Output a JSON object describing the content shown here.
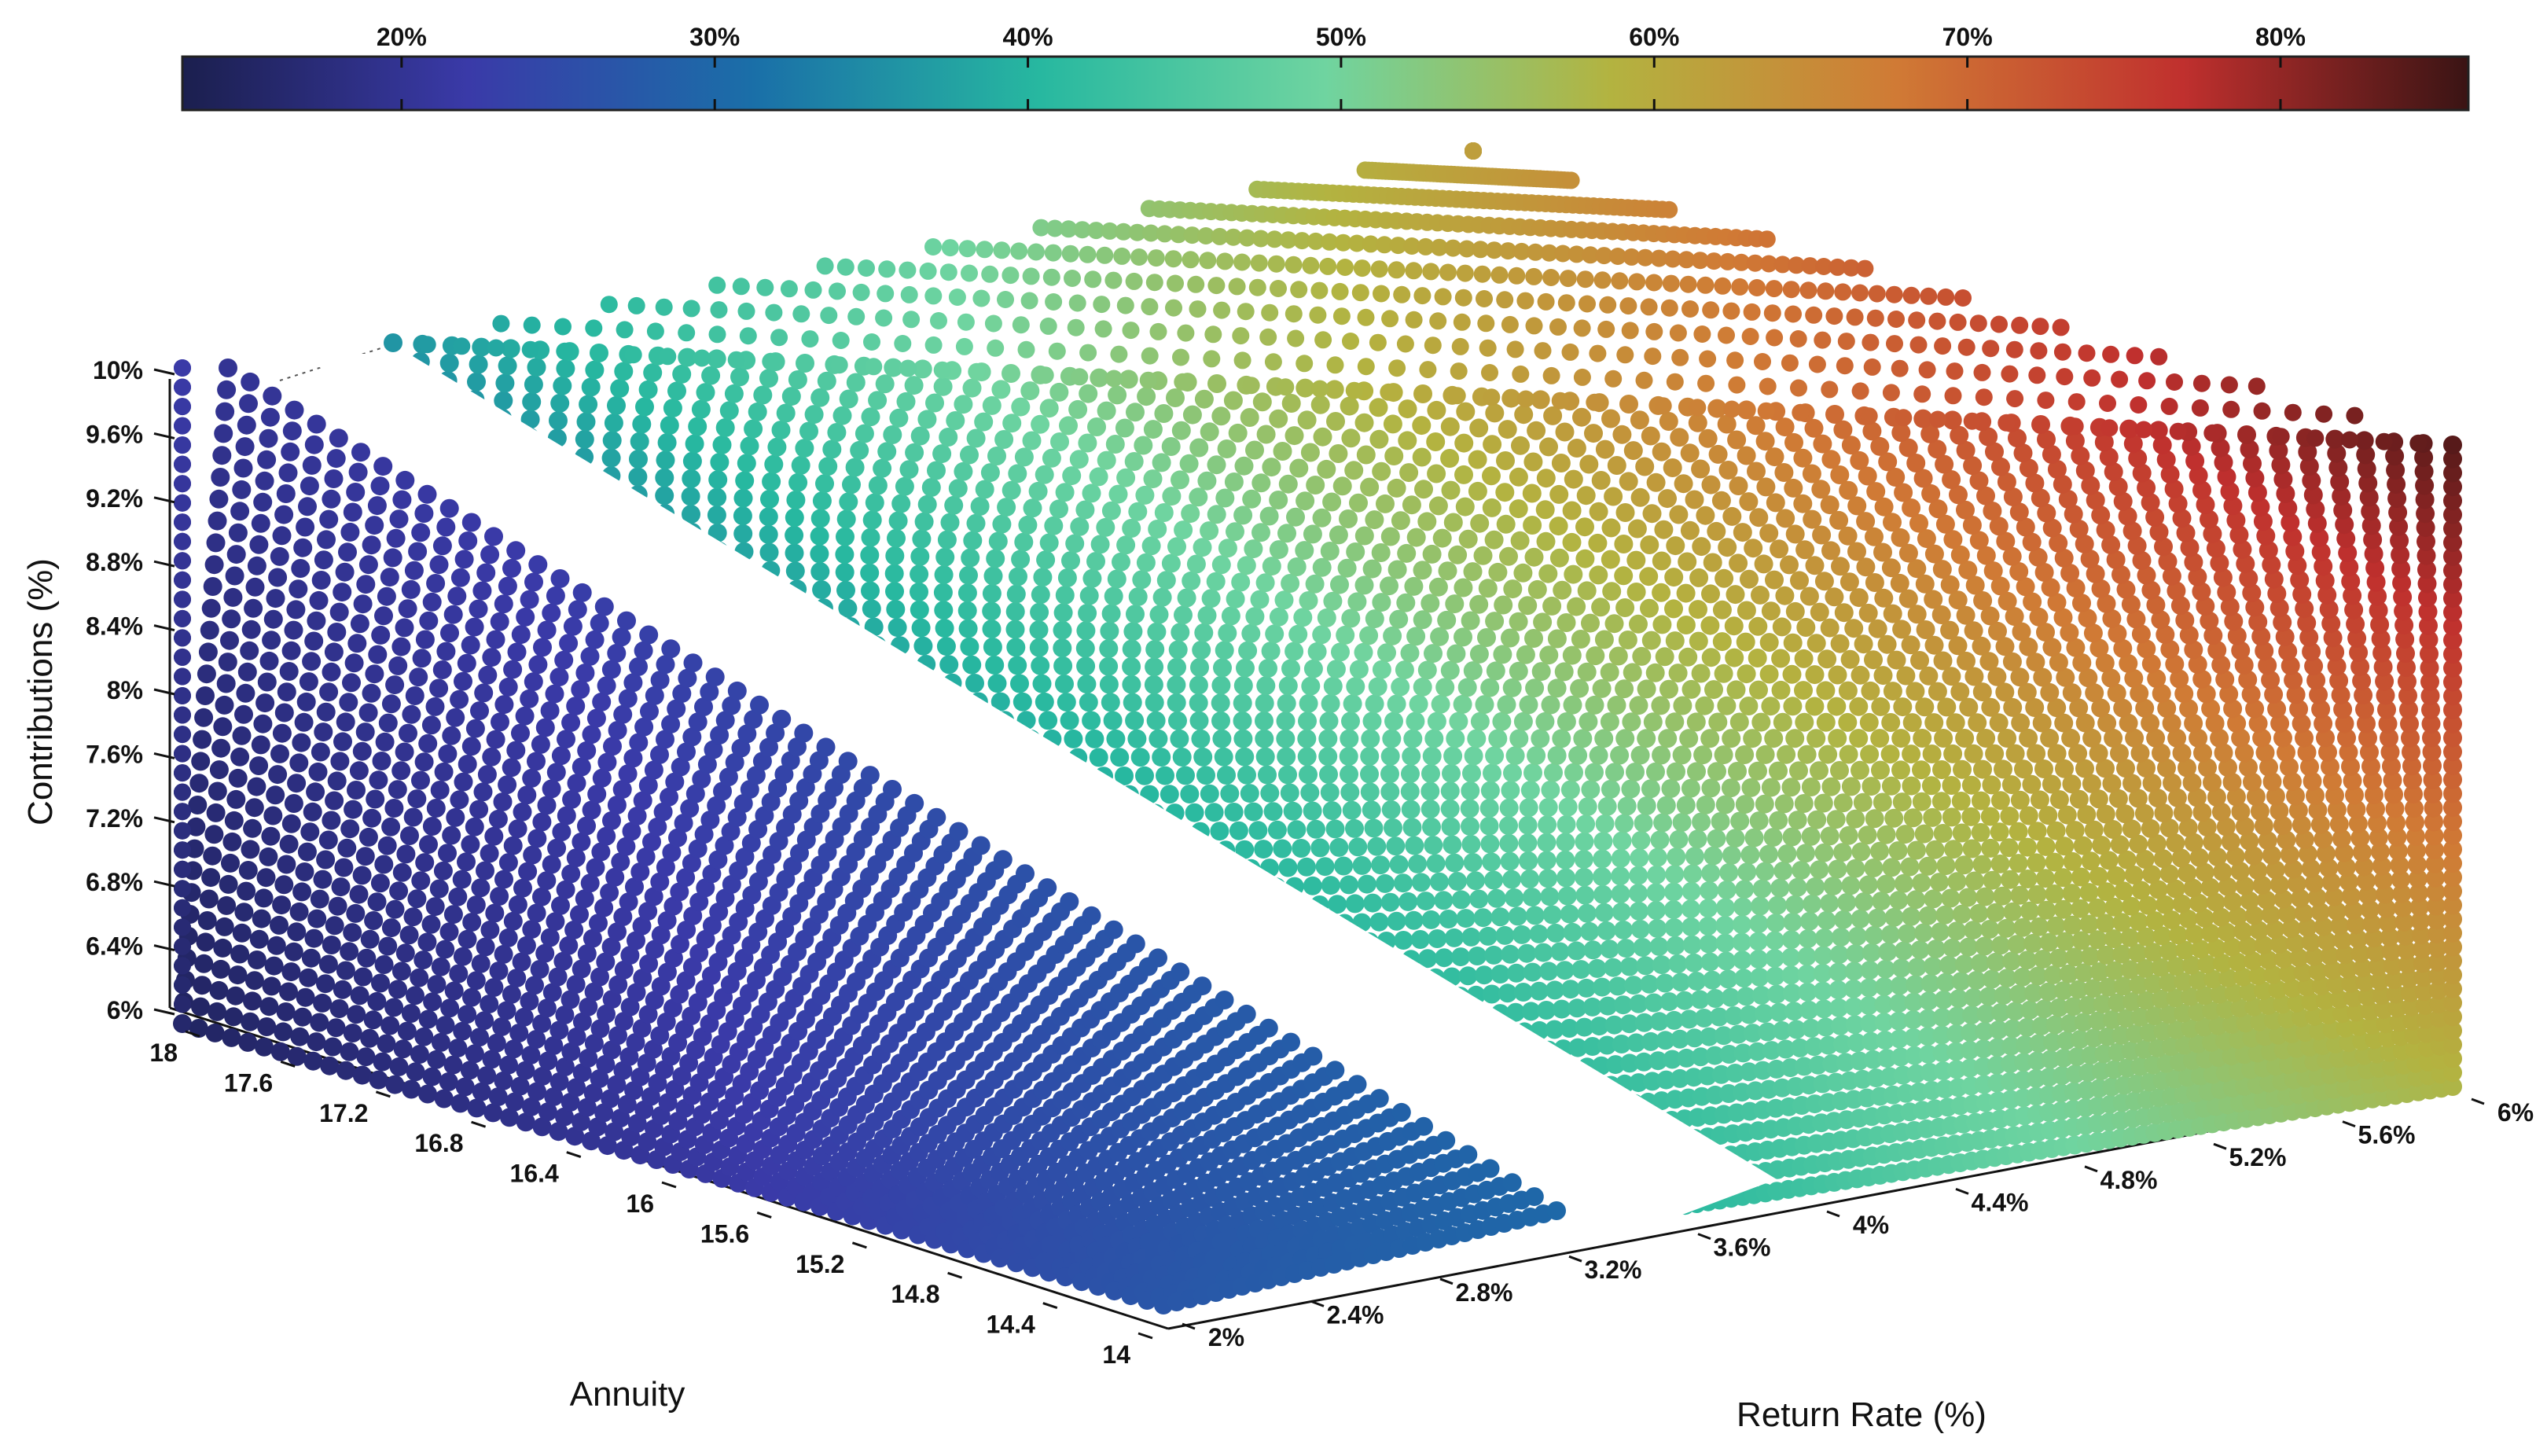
{
  "chart_data": {
    "type": "scatter",
    "variant": "3d-surface-scatter",
    "colormap": [
      "#1b1f4e",
      "#3a3aa8",
      "#1a6fa8",
      "#27b8a0",
      "#6fd4a0",
      "#b3b340",
      "#d07a35",
      "#c0302e",
      "#3a1414"
    ],
    "colorbar": {
      "ticks": [
        "20%",
        "30%",
        "40%",
        "50%",
        "60%",
        "70%",
        "80%"
      ],
      "tick_values": [
        20,
        30,
        40,
        50,
        60,
        70,
        80
      ],
      "range": [
        13,
        86
      ]
    },
    "z_axis": {
      "label": "Contributions (%)",
      "ticks": [
        "6%",
        "6.4%",
        "6.8%",
        "7.2%",
        "7.6%",
        "8%",
        "8.4%",
        "8.8%",
        "9.2%",
        "9.6%",
        "10%"
      ],
      "range": [
        6,
        10
      ]
    },
    "annuity_axis": {
      "label": "Annuity",
      "ticks": [
        "14",
        "14.4",
        "14.8",
        "15.2",
        "15.6",
        "16",
        "16.4",
        "16.8",
        "17.2",
        "17.6",
        "18"
      ],
      "range": [
        14,
        18
      ]
    },
    "return_axis": {
      "label": "Return Rate (%)",
      "ticks": [
        "2%",
        "2.4%",
        "2.8%",
        "3.2%",
        "3.6%",
        "4%",
        "4.4%",
        "4.8%",
        "5.2%",
        "5.6%",
        "6%"
      ],
      "range": [
        2,
        6
      ]
    },
    "surface_value_model": {
      "description_free": true,
      "min_value": 14,
      "max_value": 85
    }
  }
}
